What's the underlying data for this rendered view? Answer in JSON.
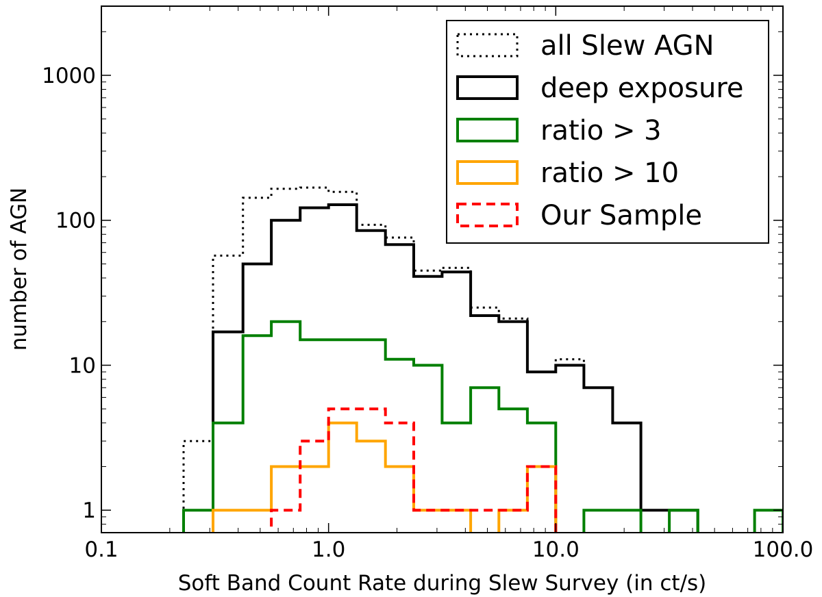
{
  "chart_data": {
    "type": "histogram-step",
    "xscale": "log",
    "yscale": "log",
    "xlim": [
      0.1,
      100.0
    ],
    "ylim": [
      0.7,
      3000
    ],
    "xlabel": "Soft Band Count Rate during Slew Survey (in ct/s)",
    "ylabel": "number of AGN",
    "x_ticks": [
      {
        "value": 0.1,
        "label": "0.1"
      },
      {
        "value": 1.0,
        "label": "1.0"
      },
      {
        "value": 10.0,
        "label": "10.0"
      },
      {
        "value": 100.0,
        "label": "100.0"
      }
    ],
    "y_ticks": [
      {
        "value": 1,
        "label": "1"
      },
      {
        "value": 10,
        "label": "10"
      },
      {
        "value": 100,
        "label": "100"
      },
      {
        "value": 1000,
        "label": "1000"
      }
    ],
    "bin_edges": [
      0.23,
      0.31,
      0.42,
      0.56,
      0.75,
      1.0,
      1.33,
      1.78,
      2.37,
      3.16,
      4.22,
      5.62,
      7.5,
      10.0,
      13.3,
      17.8,
      23.7,
      31.6,
      42.2,
      56.2,
      75.0,
      100.0
    ],
    "legend_position": "top-right",
    "series": [
      {
        "name": "all Slew AGN",
        "color": "#000000",
        "style": "dotted",
        "values": [
          3,
          57,
          143,
          165,
          168,
          157,
          93,
          76,
          45,
          47,
          25,
          21,
          9,
          11,
          7,
          4,
          1,
          1,
          0,
          0,
          0
        ]
      },
      {
        "name": "deep exposure",
        "color": "#000000",
        "style": "solid",
        "values": [
          0,
          17,
          50,
          100,
          122,
          128,
          85,
          68,
          41,
          44,
          22,
          20,
          9,
          10,
          7,
          4,
          1,
          1,
          0,
          0,
          0
        ]
      },
      {
        "name": "ratio > 3",
        "color": "#007f00",
        "style": "solid",
        "values": [
          1,
          4,
          16,
          20,
          15,
          15,
          15,
          11,
          10,
          4,
          7,
          5,
          4,
          0,
          1,
          1,
          0,
          1,
          0,
          0,
          1
        ]
      },
      {
        "name": "ratio > 10",
        "color": "#ffa500",
        "style": "solid",
        "values": [
          0,
          1,
          1,
          2,
          2,
          4,
          3,
          2,
          1,
          1,
          0,
          1,
          2,
          0,
          0,
          0,
          0,
          0,
          0,
          0,
          0
        ]
      },
      {
        "name": "Our Sample",
        "color": "#ff0000",
        "style": "dashed",
        "values": [
          0,
          0,
          0,
          1,
          3,
          5,
          5,
          4,
          1,
          1,
          1,
          1,
          2,
          0,
          0,
          0,
          0,
          0,
          0,
          0,
          0
        ]
      }
    ]
  }
}
